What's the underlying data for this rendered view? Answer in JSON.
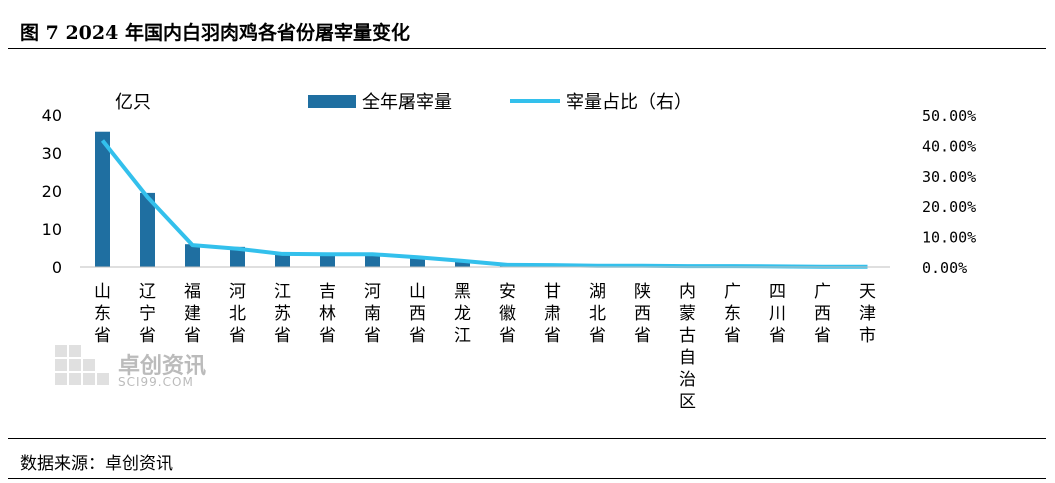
{
  "figure_title": "图 7 2024 年国内白羽肉鸡各省份屠宰量变化",
  "source": "数据来源：卓创资讯",
  "watermark": {
    "name": "卓创资讯",
    "sub": "SCI99.COM"
  },
  "chart_data": {
    "type": "bar",
    "categories": [
      "山东省",
      "辽宁省",
      "福建省",
      "河北省",
      "江苏省",
      "吉林省",
      "河南省",
      "山西省",
      "黑龙江",
      "安徽省",
      "甘肃省",
      "湖北省",
      "陕西省",
      "内蒙古自治区",
      "广东省",
      "四川省",
      "广西省",
      "天津市"
    ],
    "y_unit_label": "亿只",
    "ylim": [
      0,
      40
    ],
    "yticks": [
      "0",
      "10",
      "20",
      "30",
      "40"
    ],
    "y2lim": [
      0,
      50
    ],
    "y2ticks": [
      "0.00%",
      "10.00%",
      "20.00%",
      "30.00%",
      "40.00%",
      "50.00%"
    ],
    "series": [
      {
        "name": "全年屠宰量",
        "type": "bar",
        "axis": "left",
        "color": "#1f6fa1",
        "values": [
          35.6,
          19.5,
          6.0,
          5.3,
          3.7,
          3.6,
          3.6,
          2.8,
          1.8,
          0.6,
          0.5,
          0.3,
          0.3,
          0.3,
          0.3,
          0.2,
          0.1,
          0.1
        ]
      },
      {
        "name": "宰量占比（右）",
        "type": "line",
        "axis": "right",
        "color": "#33c0ec",
        "values": [
          41.6,
          23.0,
          7.2,
          6.0,
          4.3,
          4.2,
          4.2,
          3.2,
          2.0,
          0.7,
          0.6,
          0.4,
          0.4,
          0.3,
          0.3,
          0.2,
          0.1,
          0.1
        ]
      }
    ],
    "legend_position": "top-center",
    "grid": false
  }
}
